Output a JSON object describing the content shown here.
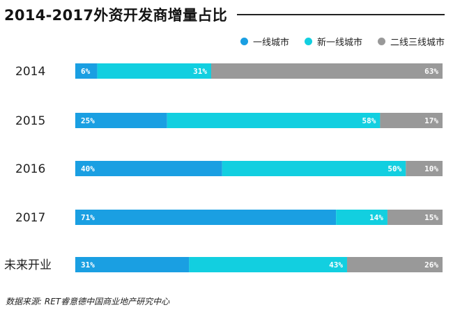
{
  "title": "2014-2017外资开发商增量占比",
  "source": "数据来源: RET睿意德中国商业地产研究中心",
  "colors": {
    "tier1": "#1a9fe2",
    "new_tier1": "#12cfe0",
    "tier23": "#999999"
  },
  "legend": [
    {
      "label": "一线城市",
      "color": "#1a9fe2"
    },
    {
      "label": "新一线城市",
      "color": "#12cfe0"
    },
    {
      "label": "二线三线城市",
      "color": "#999999"
    }
  ],
  "chart_data": {
    "type": "bar",
    "orientation": "horizontal",
    "stacked": true,
    "percent": true,
    "title": "2014-2017外资开发商增量占比",
    "categories": [
      "2014",
      "2015",
      "2016",
      "2017",
      "未来开业"
    ],
    "series": [
      {
        "name": "一线城市",
        "values": [
          6,
          25,
          40,
          71,
          31
        ]
      },
      {
        "name": "新一线城市",
        "values": [
          31,
          58,
          50,
          14,
          43
        ]
      },
      {
        "name": "二线三线城市",
        "values": [
          63,
          17,
          10,
          15,
          26
        ]
      }
    ],
    "legend_position": "top-right",
    "grid": false
  }
}
